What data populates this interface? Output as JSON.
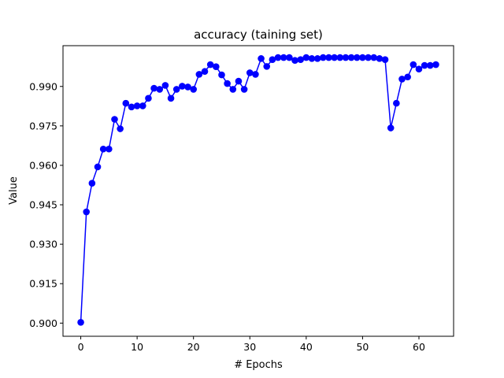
{
  "chart_data": {
    "type": "line",
    "title": "accuracy (taining set)",
    "xlabel": "# Epochs",
    "ylabel": "Value",
    "xlim": [
      -3.15,
      66.15
    ],
    "ylim": [
      0.895,
      1.0055
    ],
    "xticks": [
      0,
      10,
      20,
      30,
      40,
      50,
      60
    ],
    "yticks": [
      0.9,
      0.915,
      0.93,
      0.945,
      0.96,
      0.975,
      0.99
    ],
    "ytick_labels": [
      "0.900",
      "0.915",
      "0.930",
      "0.945",
      "0.960",
      "0.975",
      "0.990"
    ],
    "grid": false,
    "legend": "none",
    "series": [
      {
        "color": "#0000ff",
        "marker": "circle",
        "x": [
          0,
          1,
          2,
          3,
          4,
          5,
          6,
          7,
          8,
          9,
          10,
          11,
          12,
          13,
          14,
          15,
          16,
          17,
          18,
          19,
          20,
          21,
          22,
          23,
          24,
          25,
          26,
          27,
          28,
          29,
          30,
          31,
          32,
          33,
          34,
          35,
          36,
          37,
          38,
          39,
          40,
          41,
          42,
          43,
          44,
          45,
          46,
          47,
          48,
          49,
          50,
          51,
          52,
          53,
          54,
          55,
          56,
          57,
          58,
          59,
          60,
          61,
          62,
          63
        ],
        "values": [
          0.9003,
          0.9423,
          0.9532,
          0.9594,
          0.9662,
          0.9662,
          0.9775,
          0.9739,
          0.9836,
          0.9822,
          0.9826,
          0.9826,
          0.9855,
          0.9893,
          0.9889,
          0.9904,
          0.9855,
          0.9889,
          0.9901,
          0.9898,
          0.9889,
          0.9946,
          0.9957,
          0.9983,
          0.9975,
          0.9944,
          0.9911,
          0.9889,
          0.992,
          0.9889,
          0.9952,
          0.9946,
          1.0006,
          0.9976,
          1.0002,
          1.001,
          1.001,
          1.001,
          0.9999,
          1.0002,
          1.001,
          1.0006,
          1.0006,
          1.001,
          1.001,
          1.001,
          1.001,
          1.001,
          1.001,
          1.001,
          1.001,
          1.001,
          1.001,
          1.0006,
          1.0002,
          0.9742,
          0.9836,
          0.9928,
          0.9936,
          0.9983,
          0.9966,
          0.998,
          0.998,
          0.9983
        ]
      }
    ]
  }
}
